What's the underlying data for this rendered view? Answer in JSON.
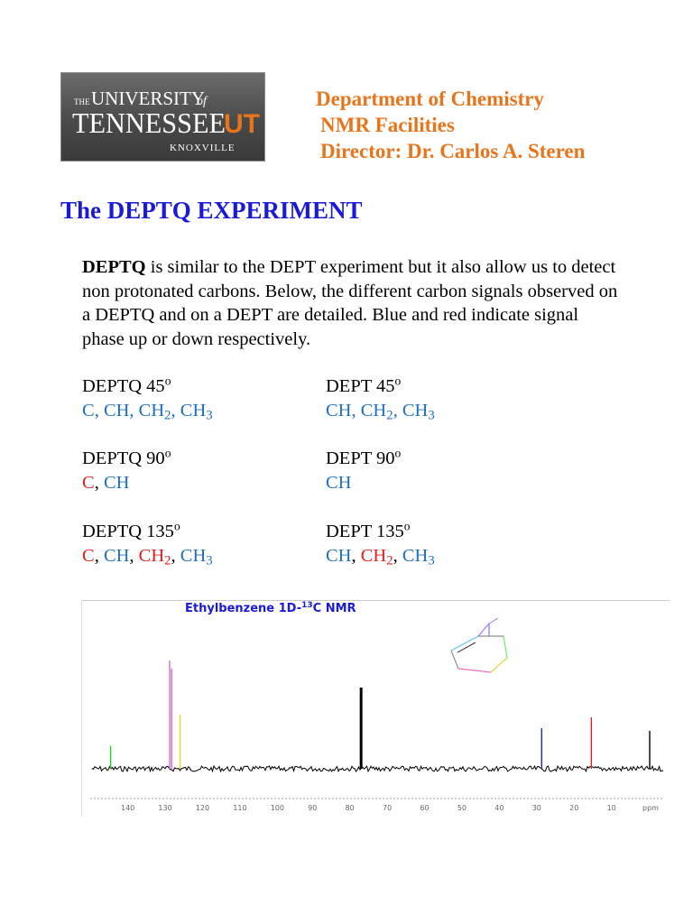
{
  "logo": {
    "line1_small": "THE",
    "line1": "UNIVERSITY",
    "line1_of": "of",
    "line2": "TENNESSEE",
    "mark": "UT",
    "line3": "KNOXVILLE",
    "colors": {
      "background": "#555555",
      "mark": "#e8741c"
    }
  },
  "header": {
    "dept": "Department of Chemistry",
    "facility": "NMR Facilities",
    "director": "Director: Dr. Carlos A. Steren"
  },
  "title": "The DEPTQ EXPERIMENT",
  "intro": {
    "bold": "DEPTQ",
    "text": " is similar to the DEPT experiment but it also allow us to detect non protonated carbons. Below, the different carbon signals observed on a DEPTQ and on a DEPT are detailed. Blue and red indicate signal phase up or down respectively."
  },
  "table": {
    "deptq45": {
      "label": "DEPTQ 45",
      "sup": "o",
      "c": "C",
      "ch": "CH",
      "ch2": "CH",
      "ch3": "CH",
      "sub2": "2",
      "sub3": "3",
      "sep": ", "
    },
    "dept45": {
      "label": "DEPT 45",
      "sup": "o"
    },
    "deptq90": {
      "label": "DEPTQ 90",
      "sup": "o",
      "c": "C",
      "ch": "CH",
      "sep": ", "
    },
    "dept90": {
      "label": "DEPT 90",
      "sup": "o",
      "ch": "CH"
    },
    "deptq135": {
      "label": "DEPTQ 135",
      "sup": "o"
    },
    "dept135": {
      "label": "DEPT 135",
      "sup": "o"
    }
  },
  "spectrum": {
    "title": "Ethylbenzene 1D-",
    "title_sup": "13",
    "title_end": "C NMR",
    "axis_unit": "ppm",
    "ticks": [
      140,
      130,
      120,
      110,
      100,
      90,
      80,
      70,
      60,
      50,
      40,
      30,
      20,
      10
    ],
    "peaks": [
      {
        "ppm": 144.2,
        "height": 0.17,
        "color": "#22cc22"
      },
      {
        "ppm": 128.4,
        "height": 0.8,
        "color": "#dd66dd"
      },
      {
        "ppm": 127.9,
        "height": 0.74,
        "color": "#cc66cc"
      },
      {
        "ppm": 125.6,
        "height": 0.4,
        "color": "#e0e020"
      },
      {
        "ppm": 77.2,
        "height": 0.6,
        "color": "#000000"
      },
      {
        "ppm": 28.9,
        "height": 0.3,
        "color": "#2222cc"
      },
      {
        "ppm": 15.6,
        "height": 0.38,
        "color": "#dd2222"
      },
      {
        "ppm": 0.0,
        "height": 0.28,
        "color": "#000000"
      }
    ]
  }
}
